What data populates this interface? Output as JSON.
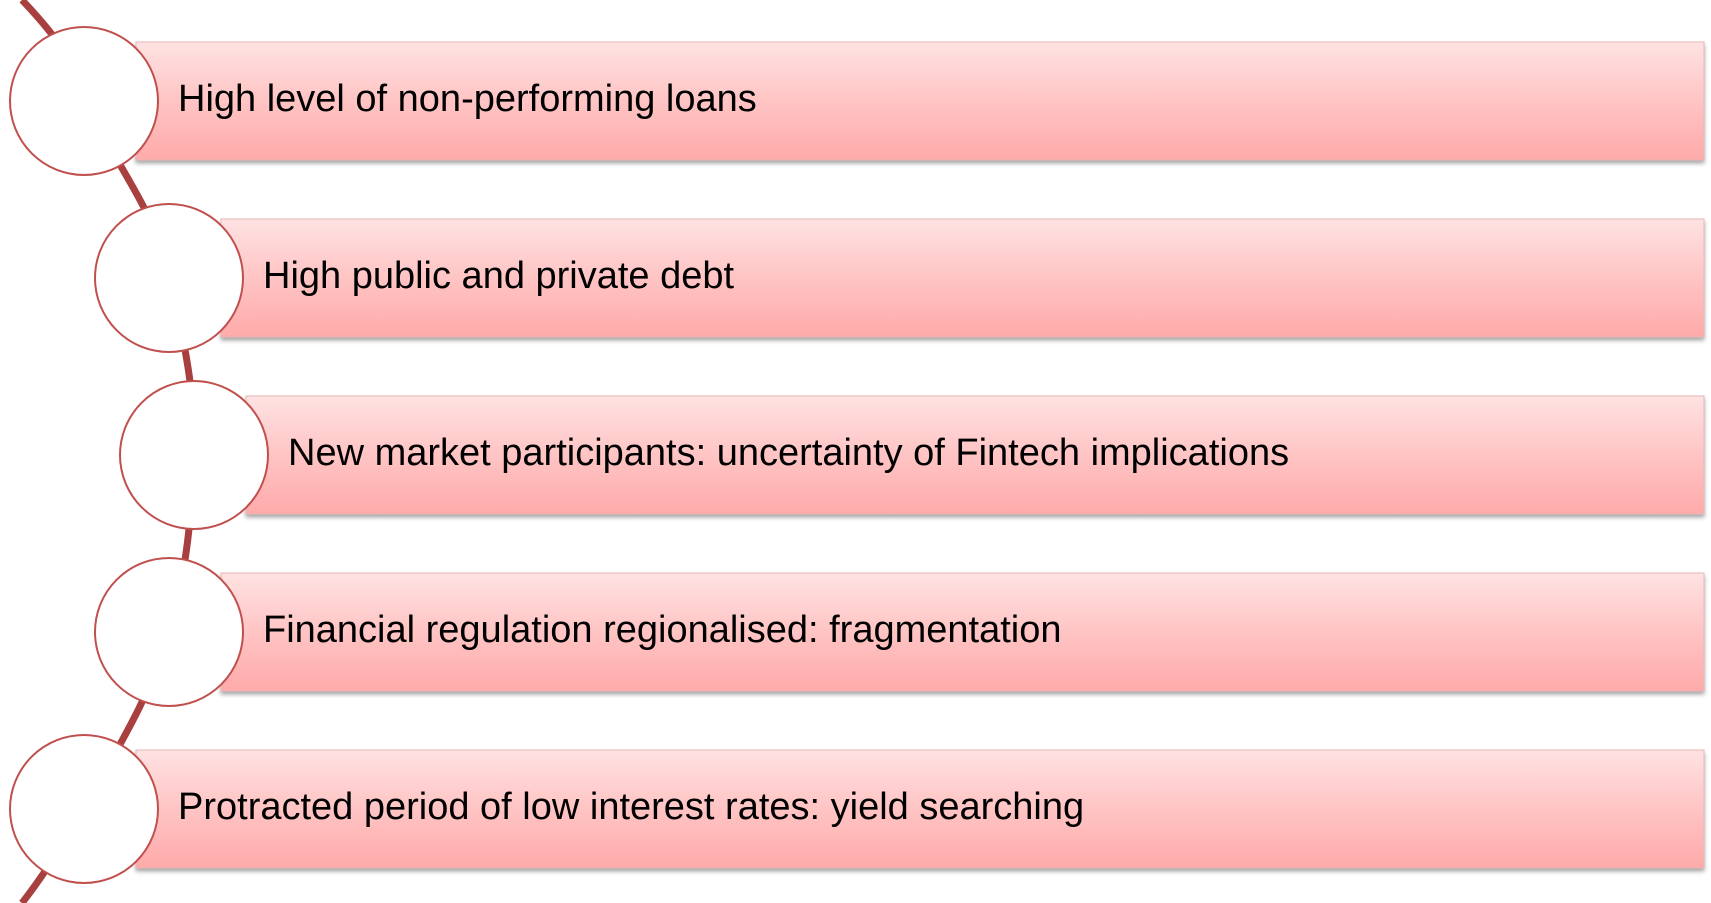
{
  "items": [
    {
      "label": "High level of non-performing loans"
    },
    {
      "label": "High public and private debt"
    },
    {
      "label": "New market participants: uncertainty of Fintech implications"
    },
    {
      "label": "Financial regulation regionalised: fragmentation"
    },
    {
      "label": "Protracted period of low interest rates: yield searching"
    }
  ]
}
